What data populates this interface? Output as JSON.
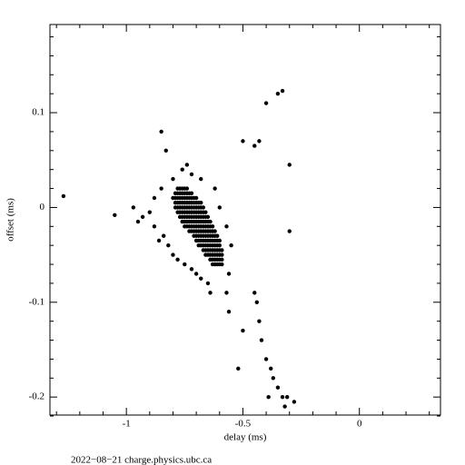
{
  "chart_data": {
    "type": "scatter",
    "xlabel": "delay (ms)",
    "ylabel": "offset (ms)",
    "footer": "2022−08−21 charge.physics.ubc.ca",
    "xlim": [
      -1.328,
      0.348
    ],
    "ylim": [
      -0.219,
      0.193
    ],
    "xticks": [
      -1,
      -0.5,
      0
    ],
    "yticks": [
      -0.2,
      -0.1,
      0,
      0.1
    ],
    "xminorticks": [
      -1.3,
      -1.2,
      -1.1,
      -0.9,
      -0.8,
      -0.7,
      -0.6,
      -0.4,
      -0.3,
      -0.2,
      -0.1,
      0.1,
      0.2,
      0.3
    ],
    "yminorticks": [
      -0.22,
      -0.18,
      -0.16,
      -0.14,
      -0.12,
      -0.08,
      -0.06,
      -0.04,
      -0.02,
      0.02,
      0.04,
      0.06,
      0.08,
      0.12,
      0.14,
      0.16,
      0.18
    ],
    "color": "#000000",
    "x": [
      -0.78,
      -0.77,
      -0.76,
      -0.75,
      -0.74,
      -0.79,
      -0.78,
      -0.77,
      -0.76,
      -0.75,
      -0.74,
      -0.73,
      -0.72,
      -0.8,
      -0.79,
      -0.78,
      -0.77,
      -0.76,
      -0.75,
      -0.74,
      -0.73,
      -0.72,
      -0.71,
      -0.7,
      -0.79,
      -0.78,
      -0.77,
      -0.76,
      -0.75,
      -0.74,
      -0.73,
      -0.72,
      -0.71,
      -0.7,
      -0.69,
      -0.68,
      -0.79,
      -0.78,
      -0.77,
      -0.76,
      -0.75,
      -0.74,
      -0.73,
      -0.72,
      -0.71,
      -0.7,
      -0.69,
      -0.68,
      -0.67,
      -0.78,
      -0.77,
      -0.76,
      -0.75,
      -0.74,
      -0.73,
      -0.72,
      -0.71,
      -0.7,
      -0.69,
      -0.68,
      -0.67,
      -0.66,
      -0.77,
      -0.76,
      -0.75,
      -0.74,
      -0.73,
      -0.72,
      -0.71,
      -0.7,
      -0.69,
      -0.68,
      -0.67,
      -0.66,
      -0.65,
      -0.76,
      -0.75,
      -0.74,
      -0.73,
      -0.72,
      -0.71,
      -0.7,
      -0.69,
      -0.68,
      -0.67,
      -0.66,
      -0.65,
      -0.64,
      -0.75,
      -0.74,
      -0.73,
      -0.72,
      -0.71,
      -0.7,
      -0.69,
      -0.68,
      -0.67,
      -0.66,
      -0.65,
      -0.64,
      -0.63,
      -0.73,
      -0.72,
      -0.71,
      -0.7,
      -0.69,
      -0.68,
      -0.67,
      -0.66,
      -0.65,
      -0.64,
      -0.63,
      -0.62,
      -0.71,
      -0.7,
      -0.69,
      -0.68,
      -0.67,
      -0.66,
      -0.65,
      -0.64,
      -0.63,
      -0.62,
      -0.61,
      -0.7,
      -0.69,
      -0.68,
      -0.67,
      -0.66,
      -0.65,
      -0.64,
      -0.63,
      -0.62,
      -0.61,
      -0.6,
      -0.69,
      -0.68,
      -0.67,
      -0.66,
      -0.65,
      -0.64,
      -0.63,
      -0.62,
      -0.61,
      -0.6,
      -0.67,
      -0.66,
      -0.65,
      -0.64,
      -0.63,
      -0.62,
      -0.61,
      -0.6,
      -0.59,
      -0.66,
      -0.65,
      -0.64,
      -0.63,
      -0.62,
      -0.61,
      -0.6,
      -0.59,
      -0.64,
      -0.63,
      -0.62,
      -0.61,
      -0.6,
      -0.59,
      -0.63,
      -0.62,
      -0.61,
      -0.6,
      -0.59,
      -1.27,
      -0.4,
      -0.35,
      -0.33,
      -0.5,
      -0.45,
      -0.43,
      -0.3,
      -0.85,
      -0.83,
      -0.57,
      -0.56,
      -0.45,
      -0.44,
      -0.43,
      -0.42,
      -0.4,
      -0.38,
      -0.35,
      -0.33,
      -0.31,
      -0.32,
      -0.28,
      -0.39,
      -0.37,
      -0.5,
      -0.52,
      -0.3,
      -0.85,
      -0.88,
      -0.9,
      -0.93,
      -0.95,
      -1.05,
      -0.97,
      -0.84,
      -0.82,
      -0.8,
      -0.78,
      -0.75,
      -0.7,
      -0.68,
      -0.65,
      -0.72,
      -0.56,
      -0.55,
      -0.57,
      -0.6,
      -0.62,
      -0.68,
      -0.72,
      -0.8,
      -0.64,
      -0.88,
      -0.86,
      -0.76,
      -0.74
    ],
    "y": [
      0.02,
      0.02,
      0.02,
      0.02,
      0.02,
      0.015,
      0.015,
      0.015,
      0.015,
      0.015,
      0.015,
      0.015,
      0.015,
      0.01,
      0.01,
      0.01,
      0.01,
      0.01,
      0.01,
      0.01,
      0.01,
      0.01,
      0.01,
      0.01,
      0.005,
      0.005,
      0.005,
      0.005,
      0.005,
      0.005,
      0.005,
      0.005,
      0.005,
      0.005,
      0.005,
      0.005,
      0,
      0,
      0,
      0,
      0,
      0,
      0,
      0,
      0,
      0,
      0,
      0,
      0,
      -0.005,
      -0.005,
      -0.005,
      -0.005,
      -0.005,
      -0.005,
      -0.005,
      -0.005,
      -0.005,
      -0.005,
      -0.005,
      -0.005,
      -0.005,
      -0.01,
      -0.01,
      -0.01,
      -0.01,
      -0.01,
      -0.01,
      -0.01,
      -0.01,
      -0.01,
      -0.01,
      -0.01,
      -0.01,
      -0.01,
      -0.015,
      -0.015,
      -0.015,
      -0.015,
      -0.015,
      -0.015,
      -0.015,
      -0.015,
      -0.015,
      -0.015,
      -0.015,
      -0.015,
      -0.015,
      -0.02,
      -0.02,
      -0.02,
      -0.02,
      -0.02,
      -0.02,
      -0.02,
      -0.02,
      -0.02,
      -0.02,
      -0.02,
      -0.02,
      -0.02,
      -0.025,
      -0.025,
      -0.025,
      -0.025,
      -0.025,
      -0.025,
      -0.025,
      -0.025,
      -0.025,
      -0.025,
      -0.025,
      -0.025,
      -0.03,
      -0.03,
      -0.03,
      -0.03,
      -0.03,
      -0.03,
      -0.03,
      -0.03,
      -0.03,
      -0.03,
      -0.03,
      -0.035,
      -0.035,
      -0.035,
      -0.035,
      -0.035,
      -0.035,
      -0.035,
      -0.035,
      -0.035,
      -0.035,
      -0.035,
      -0.04,
      -0.04,
      -0.04,
      -0.04,
      -0.04,
      -0.04,
      -0.04,
      -0.04,
      -0.04,
      -0.04,
      -0.045,
      -0.045,
      -0.045,
      -0.045,
      -0.045,
      -0.045,
      -0.045,
      -0.045,
      -0.045,
      -0.05,
      -0.05,
      -0.05,
      -0.05,
      -0.05,
      -0.05,
      -0.05,
      -0.05,
      -0.055,
      -0.055,
      -0.055,
      -0.055,
      -0.055,
      -0.055,
      -0.06,
      -0.06,
      -0.06,
      -0.06,
      -0.06,
      0.012,
      0.11,
      0.12,
      0.123,
      0.07,
      0.065,
      0.07,
      0.045,
      0.08,
      0.06,
      -0.09,
      -0.11,
      -0.09,
      -0.1,
      -0.12,
      -0.14,
      -0.16,
      -0.17,
      -0.19,
      -0.2,
      -0.2,
      -0.21,
      -0.205,
      -0.2,
      -0.18,
      -0.13,
      -0.17,
      -0.025,
      0.02,
      0.01,
      -0.005,
      -0.01,
      -0.015,
      -0.008,
      0,
      -0.03,
      -0.04,
      -0.05,
      -0.055,
      -0.06,
      -0.07,
      -0.075,
      -0.08,
      -0.065,
      -0.07,
      -0.04,
      -0.02,
      0,
      0.02,
      0.03,
      0.035,
      0.03,
      -0.09,
      -0.02,
      -0.035,
      0.04,
      0.045
    ]
  }
}
